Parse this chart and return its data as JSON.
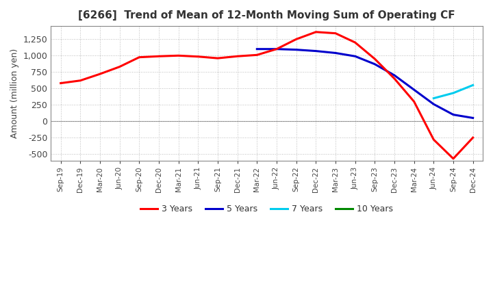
{
  "title": "[6266]  Trend of Mean of 12-Month Moving Sum of Operating CF",
  "ylabel": "Amount (million yen)",
  "ylim": [
    -600,
    1450
  ],
  "yticks": [
    -500,
    -250,
    0,
    250,
    500,
    750,
    1000,
    1250
  ],
  "legend_labels": [
    "3 Years",
    "5 Years",
    "7 Years",
    "10 Years"
  ],
  "legend_colors": [
    "#ff0000",
    "#0000cc",
    "#00ccee",
    "#008800"
  ],
  "background_color": "#ffffff",
  "grid_color": "#bbbbbb",
  "x_labels": [
    "Sep-19",
    "Dec-19",
    "Mar-20",
    "Jun-20",
    "Sep-20",
    "Dec-20",
    "Mar-21",
    "Jun-21",
    "Sep-21",
    "Dec-21",
    "Mar-22",
    "Jun-22",
    "Sep-22",
    "Dec-22",
    "Mar-23",
    "Jun-23",
    "Sep-23",
    "Dec-23",
    "Mar-24",
    "Jun-24",
    "Sep-24",
    "Dec-24"
  ],
  "series_3y": [
    580,
    620,
    720,
    830,
    975,
    990,
    1000,
    985,
    960,
    990,
    1010,
    1100,
    1250,
    1360,
    1340,
    1200,
    950,
    650,
    300,
    -280,
    -570,
    -250
  ],
  "series_5y": [
    null,
    null,
    null,
    null,
    null,
    null,
    null,
    null,
    null,
    null,
    1100,
    1100,
    1090,
    1070,
    1040,
    990,
    870,
    700,
    480,
    260,
    100,
    50
  ],
  "series_7y": [
    null,
    null,
    null,
    null,
    null,
    null,
    null,
    null,
    null,
    null,
    null,
    null,
    null,
    null,
    null,
    null,
    null,
    null,
    null,
    350,
    430,
    550
  ],
  "series_10y": [
    null,
    null,
    null,
    null,
    null,
    null,
    null,
    null,
    null,
    null,
    null,
    null,
    null,
    null,
    null,
    null,
    null,
    null,
    null,
    null,
    null,
    null
  ]
}
